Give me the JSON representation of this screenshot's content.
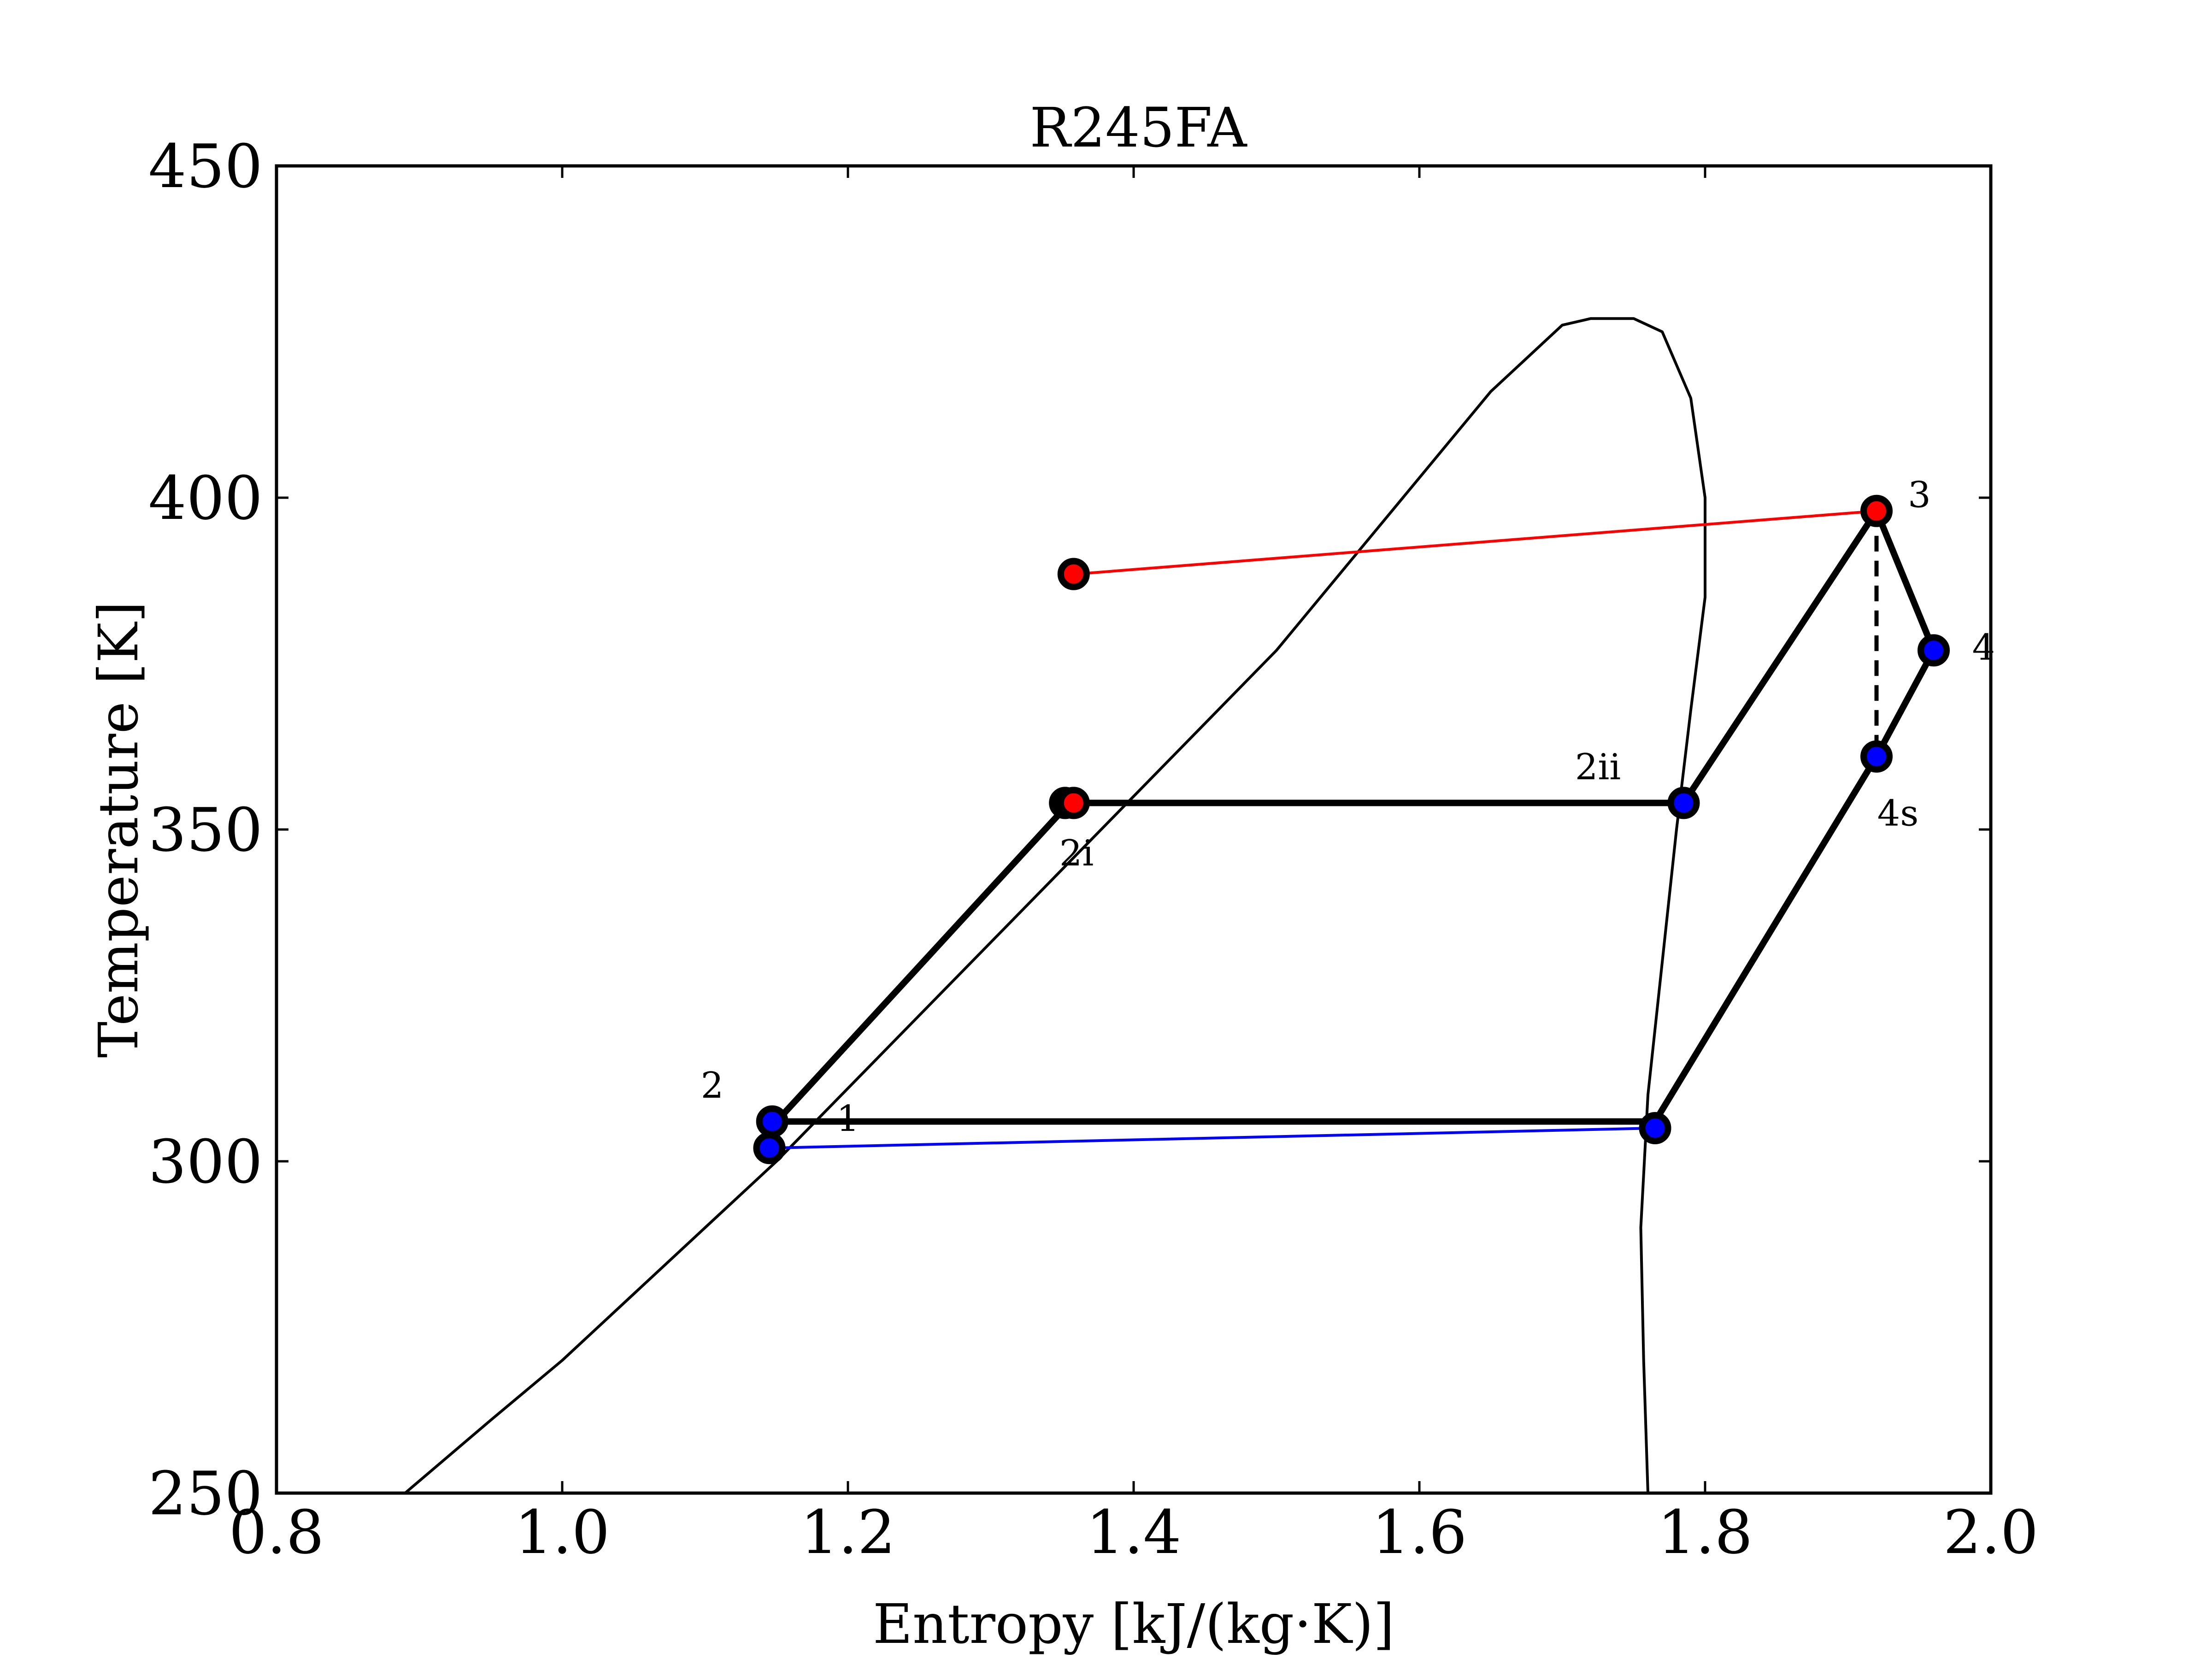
{
  "chart_data": {
    "type": "line",
    "title": "R245FA",
    "xlabel": "Entropy [kJ/(kg·K)]",
    "ylabel": "Temperature [K]",
    "xlim": [
      0.8,
      2.0
    ],
    "ylim": [
      250,
      450
    ],
    "xticks": [
      "0.8",
      "1.0",
      "1.2",
      "1.4",
      "1.6",
      "1.8",
      "2.0"
    ],
    "yticks": [
      "250",
      "300",
      "350",
      "400",
      "450"
    ],
    "grid": false,
    "saturation_dome": {
      "color": "#000000",
      "x": [
        0.89,
        0.95,
        1.0,
        1.05,
        1.1,
        1.15,
        1.2,
        1.25,
        1.3,
        1.35,
        1.4,
        1.45,
        1.5,
        1.55,
        1.6,
        1.65,
        1.7,
        1.72,
        1.75,
        1.77,
        1.79,
        1.8,
        1.8,
        1.79,
        1.78,
        1.77,
        1.76,
        1.755,
        1.757,
        1.76
      ],
      "y": [
        250,
        261,
        270,
        280,
        290,
        300,
        311,
        322,
        333,
        344,
        355,
        366,
        377,
        390,
        403,
        416,
        426,
        427,
        427,
        425,
        415,
        400,
        385,
        368,
        350,
        330,
        310,
        290,
        270,
        250
      ]
    },
    "series": [
      {
        "color": "#000000",
        "linewidth": "thick",
        "x": [
          1.15,
          1.355,
          1.785,
          1.92,
          1.96,
          1.92,
          1.765,
          1.15
        ],
        "y": [
          306,
          354,
          354,
          398,
          377,
          361,
          306,
          306
        ]
      },
      {
        "color": "#000000",
        "linestyle": "dashed",
        "x": [
          1.92,
          1.92
        ],
        "y": [
          398,
          361
        ]
      },
      {
        "color": "#ff0000",
        "x": [
          1.36,
          1.92
        ],
        "y": [
          388.5,
          398
        ]
      },
      {
        "color": "#0000ff",
        "x": [
          1.145,
          1.765
        ],
        "y": [
          302,
          305
        ]
      }
    ],
    "points": [
      {
        "x": 1.147,
        "y": 306,
        "color": "#0000ff"
      },
      {
        "x": 1.145,
        "y": 302,
        "color": "#0000ff"
      },
      {
        "x": 1.352,
        "y": 354,
        "color": "#000000"
      },
      {
        "x": 1.358,
        "y": 354,
        "color": "#ff0000"
      },
      {
        "x": 1.358,
        "y": 388.5,
        "color": "#ff0000"
      },
      {
        "x": 1.785,
        "y": 354,
        "color": "#0000ff"
      },
      {
        "x": 1.92,
        "y": 398,
        "color": "#ff0000"
      },
      {
        "x": 1.96,
        "y": 377,
        "color": "#0000ff"
      },
      {
        "x": 1.92,
        "y": 361,
        "color": "#0000ff"
      },
      {
        "x": 1.765,
        "y": 305,
        "color": "#0000ff"
      }
    ],
    "labels": [
      {
        "text": "1",
        "x": 1.2,
        "y": 306
      },
      {
        "text": "2",
        "x": 1.105,
        "y": 311
      },
      {
        "text": "2i",
        "x": 1.36,
        "y": 346
      },
      {
        "text": "2ii",
        "x": 1.725,
        "y": 359
      },
      {
        "text": "3",
        "x": 1.95,
        "y": 400
      },
      {
        "text": "4",
        "x": 1.995,
        "y": 377
      },
      {
        "text": "4s",
        "x": 1.935,
        "y": 352
      }
    ]
  }
}
